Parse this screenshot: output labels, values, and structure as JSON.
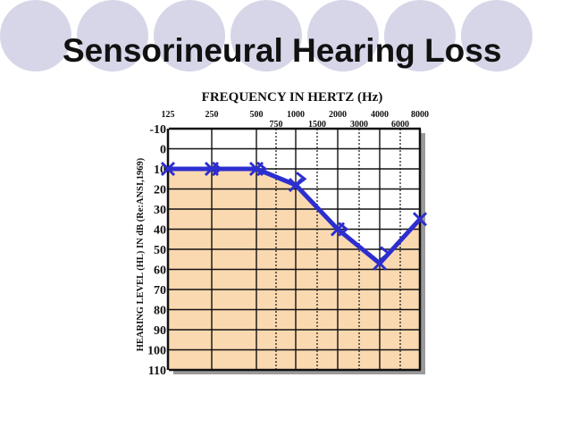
{
  "slide": {
    "title": "Sensorineural Hearing Loss"
  },
  "colors": {
    "background_circles": "#d6d6e8",
    "loss_fill": "#fad9b0",
    "series_line": "#2d2ecf",
    "grid": "#111111"
  },
  "chart_data": {
    "type": "line",
    "title": "FREQUENCY IN HERTZ (Hz)",
    "ylabel": "HEARING LEVEL (HL) IN dB (Re:ANSI,1969)",
    "x_ticks_top": [
      "125",
      "250",
      "500",
      "1000",
      "2000",
      "4000",
      "8000"
    ],
    "x_ticks_mid": [
      "750",
      "1500",
      "3000",
      "6000"
    ],
    "y_ticks": [
      "-10",
      "0",
      "10",
      "20",
      "30",
      "40",
      "50",
      "60",
      "70",
      "80",
      "90",
      "100",
      "110"
    ],
    "ylim": [
      -10,
      110
    ],
    "y_inverted": true,
    "grid": true,
    "series": [
      {
        "marker": "x",
        "x": [
          "125",
          "250",
          "500",
          "1000",
          "2000",
          "4000",
          "8000"
        ],
        "values": [
          10,
          10,
          10,
          18,
          40,
          57,
          35
        ]
      },
      {
        "marker": ">",
        "x": [
          "250",
          "500",
          "1000",
          "2000",
          "4000"
        ],
        "values": [
          10,
          10,
          15,
          40,
          52
        ]
      }
    ]
  }
}
